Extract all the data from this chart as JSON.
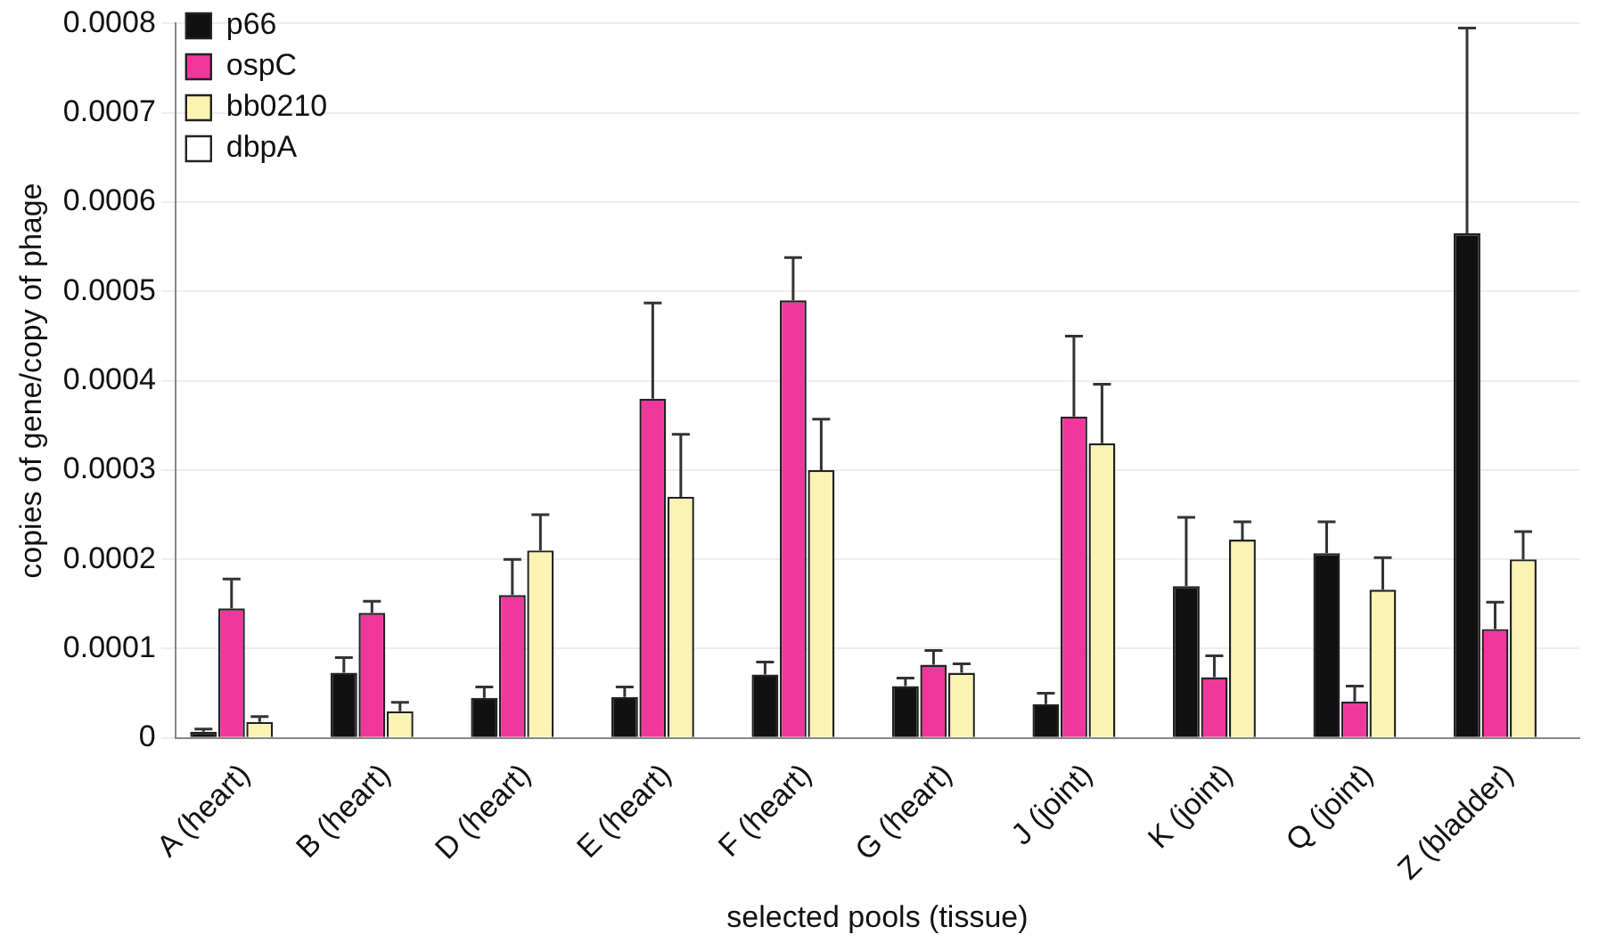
{
  "chart_data": {
    "type": "bar",
    "xlabel": "selected pools (tissue)",
    "ylabel": "copies of gene/copy of phage",
    "categories": [
      "A (heart)",
      "B (heart)",
      "D (heart)",
      "E (heart)",
      "F (heart)",
      "G (heart)",
      "J (joint)",
      "K (joint)",
      "Q (joint)",
      "Z (bladder)"
    ],
    "series": [
      {
        "name": "p66",
        "color": "#111111",
        "values": [
          7e-06,
          7.3e-05,
          4.5e-05,
          4.6e-05,
          7.1e-05,
          5.8e-05,
          3.8e-05,
          0.00017,
          0.000207,
          0.000565
        ],
        "errors": [
          [
            7e-06,
            1e-05
          ],
          [
            7.3e-05,
            9e-05
          ],
          [
            4.5e-05,
            5.7e-05
          ],
          [
            4.6e-05,
            5.7e-05
          ],
          [
            7.1e-05,
            8.5e-05
          ],
          [
            5.8e-05,
            6.7e-05
          ],
          [
            3.8e-05,
            5e-05
          ],
          [
            0.00017,
            0.000247
          ],
          [
            0.000207,
            0.000242
          ],
          [
            0.000565,
            0.000795
          ]
        ]
      },
      {
        "name": "ospC",
        "color": "#f0379c",
        "values": [
          0.000145,
          0.00014,
          0.00016,
          0.00038,
          0.00049,
          8.2e-05,
          0.00036,
          6.8e-05,
          4.1e-05,
          0.000122
        ],
        "errors": [
          [
            0.000145,
            0.000178
          ],
          [
            0.00014,
            0.000153
          ],
          [
            0.00016,
            0.0002
          ],
          [
            0.00038,
            0.000487
          ],
          [
            0.00049,
            0.000538
          ],
          [
            8.2e-05,
            9.8e-05
          ],
          [
            0.00036,
            0.00045
          ],
          [
            6.8e-05,
            9.2e-05
          ],
          [
            4.1e-05,
            5.8e-05
          ],
          [
            0.000122,
            0.000152
          ]
        ]
      },
      {
        "name": "bb0210",
        "color": "#fbf3b4",
        "values": [
          1.8e-05,
          3e-05,
          0.00021,
          0.00027,
          0.0003,
          7.3e-05,
          0.00033,
          0.000222,
          0.000166,
          0.0002
        ],
        "errors": [
          [
            1.8e-05,
            2.4e-05
          ],
          [
            3e-05,
            4e-05
          ],
          [
            0.00021,
            0.00025
          ],
          [
            0.00027,
            0.00034
          ],
          [
            0.0003,
            0.000357
          ],
          [
            7.3e-05,
            8.3e-05
          ],
          [
            0.00033,
            0.000396
          ],
          [
            0.000222,
            0.000242
          ],
          [
            0.000166,
            0.000202
          ],
          [
            0.0002,
            0.000231
          ]
        ]
      },
      {
        "name": "dbpA",
        "color": "#ffffff",
        "values": [
          0,
          0,
          0,
          0,
          0,
          0,
          0,
          0,
          0,
          0
        ]
      }
    ],
    "ylim": [
      0,
      0.0008
    ],
    "yticks": [
      0,
      0.0001,
      0.0002,
      0.0003,
      0.0004,
      0.0005,
      0.0006,
      0.0007,
      0.0008
    ],
    "grid": "y",
    "legend": "top left"
  }
}
